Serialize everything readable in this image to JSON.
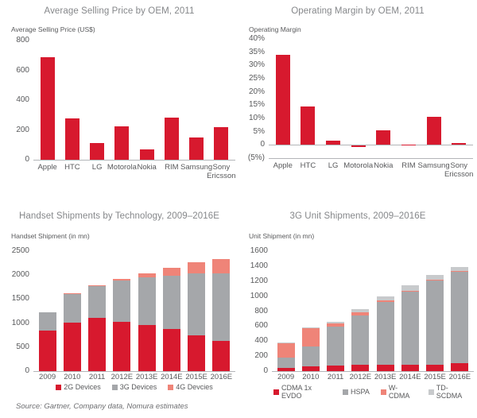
{
  "page": {
    "source_note": "Source: Gartner, Company data, Nomura estimates"
  },
  "colors": {
    "red": "#d7192e",
    "gray": "#a5a7aa",
    "salmon": "#ef8478",
    "light_gray": "#c8cacc",
    "axis_line": "#b3b5b8",
    "title_text": "#85878a",
    "label_text": "#58595b"
  },
  "chart_data": [
    {
      "id": "asp",
      "type": "bar",
      "title": "Average Selling Price by OEM, 2011",
      "axis_label": "Average Selling Price (US$)",
      "categories": [
        "Apple",
        "HTC",
        "LG",
        "Motorola",
        "Nokia",
        "RIM",
        "Samsung",
        "Sony Ericsson"
      ],
      "values": [
        690,
        277,
        113,
        222,
        67,
        285,
        147,
        218
      ],
      "bar_color": "#d7192e",
      "ylim": [
        0,
        800
      ],
      "grid": false,
      "legend_position": "none",
      "yticks": [
        {
          "v": 800,
          "label": "800"
        },
        {
          "v": 600,
          "label": "600"
        },
        {
          "v": 400,
          "label": "400"
        },
        {
          "v": 200,
          "label": "200"
        },
        {
          "v": 0,
          "label": "0"
        }
      ]
    },
    {
      "id": "margin",
      "type": "bar",
      "title": "Operating Margin by OEM, 2011",
      "axis_label": "Operating Margin",
      "categories": [
        "Apple",
        "HTC",
        "LG",
        "Motorola",
        "Nokia",
        "RIM",
        "Samsung",
        "Sony Ericsson"
      ],
      "values": [
        34,
        14.4,
        1.5,
        -0.5,
        5.5,
        0.2,
        10.5,
        0.8
      ],
      "values_unit": "%",
      "bar_color": "#d7192e",
      "ylim": [
        -5,
        40
      ],
      "grid": false,
      "legend_position": "none",
      "yticks": [
        {
          "v": 40,
          "label": "40%"
        },
        {
          "v": 35,
          "label": "35%"
        },
        {
          "v": 30,
          "label": "30%"
        },
        {
          "v": 25,
          "label": "25%"
        },
        {
          "v": 20,
          "label": "20%"
        },
        {
          "v": 15,
          "label": "15%"
        },
        {
          "v": 10,
          "label": "10%"
        },
        {
          "v": 5,
          "label": "5%"
        },
        {
          "v": 0,
          "label": "0"
        },
        {
          "v": -5,
          "label": "(5%)"
        }
      ]
    },
    {
      "id": "handset",
      "type": "stacked-bar",
      "title": "Handset Shipments by Technology, 2009–2016E",
      "axis_label": "Handset Shipment (in mn)",
      "categories": [
        "2009",
        "2010",
        "2011",
        "2012E",
        "2013E",
        "2014E",
        "2015E",
        "2016E"
      ],
      "series": [
        {
          "name": "2G Devices",
          "color": "#d7192e",
          "values": [
            840,
            1010,
            1105,
            1030,
            960,
            870,
            750,
            630
          ]
        },
        {
          "name": "3G Devices",
          "color": "#a5a7aa",
          "values": [
            380,
            590,
            665,
            850,
            990,
            1120,
            1280,
            1400
          ]
        },
        {
          "name": "4G Devcies",
          "color": "#ef8478",
          "values": [
            0,
            15,
            20,
            40,
            85,
            155,
            235,
            310
          ]
        }
      ],
      "ylim": [
        0,
        2500
      ],
      "grid": false,
      "legend_position": "bottom",
      "yticks": [
        {
          "v": 2500,
          "label": "2500"
        },
        {
          "v": 2000,
          "label": "2000"
        },
        {
          "v": 1500,
          "label": "1500"
        },
        {
          "v": 1000,
          "label": "1000"
        },
        {
          "v": 500,
          "label": "500"
        },
        {
          "v": 0,
          "label": "0"
        }
      ]
    },
    {
      "id": "units3g",
      "type": "stacked-bar",
      "title": "3G Unit Shipments, 2009–2016E",
      "axis_label": "Unit Shipment (in mn)",
      "categories": [
        "2009",
        "2010",
        "2011",
        "2012E",
        "2013E",
        "2014E",
        "2015E",
        "2016E"
      ],
      "series": [
        {
          "name": "CDMA 1x EVDO",
          "color": "#d7192e",
          "values": [
            40,
            60,
            75,
            90,
            85,
            80,
            90,
            110
          ]
        },
        {
          "name": "HSPA",
          "color": "#a5a7aa",
          "values": [
            135,
            270,
            520,
            655,
            840,
            975,
            1125,
            1220
          ]
        },
        {
          "name": "W-CDMA",
          "color": "#ef8478",
          "values": [
            205,
            240,
            40,
            35,
            15,
            10,
            5,
            5
          ]
        },
        {
          "name": "TD-SCDMA",
          "color": "#c8cacc",
          "values": [
            5,
            10,
            20,
            45,
            55,
            75,
            65,
            55
          ]
        }
      ],
      "ylim": [
        0,
        1600
      ],
      "grid": false,
      "legend_position": "bottom",
      "yticks": [
        {
          "v": 1600,
          "label": "1600"
        },
        {
          "v": 1400,
          "label": "1400"
        },
        {
          "v": 1200,
          "label": "1200"
        },
        {
          "v": 1000,
          "label": "1000"
        },
        {
          "v": 800,
          "label": "800"
        },
        {
          "v": 600,
          "label": "600"
        },
        {
          "v": 400,
          "label": "400"
        },
        {
          "v": 200,
          "label": "200"
        },
        {
          "v": 0,
          "label": "0"
        }
      ]
    }
  ]
}
